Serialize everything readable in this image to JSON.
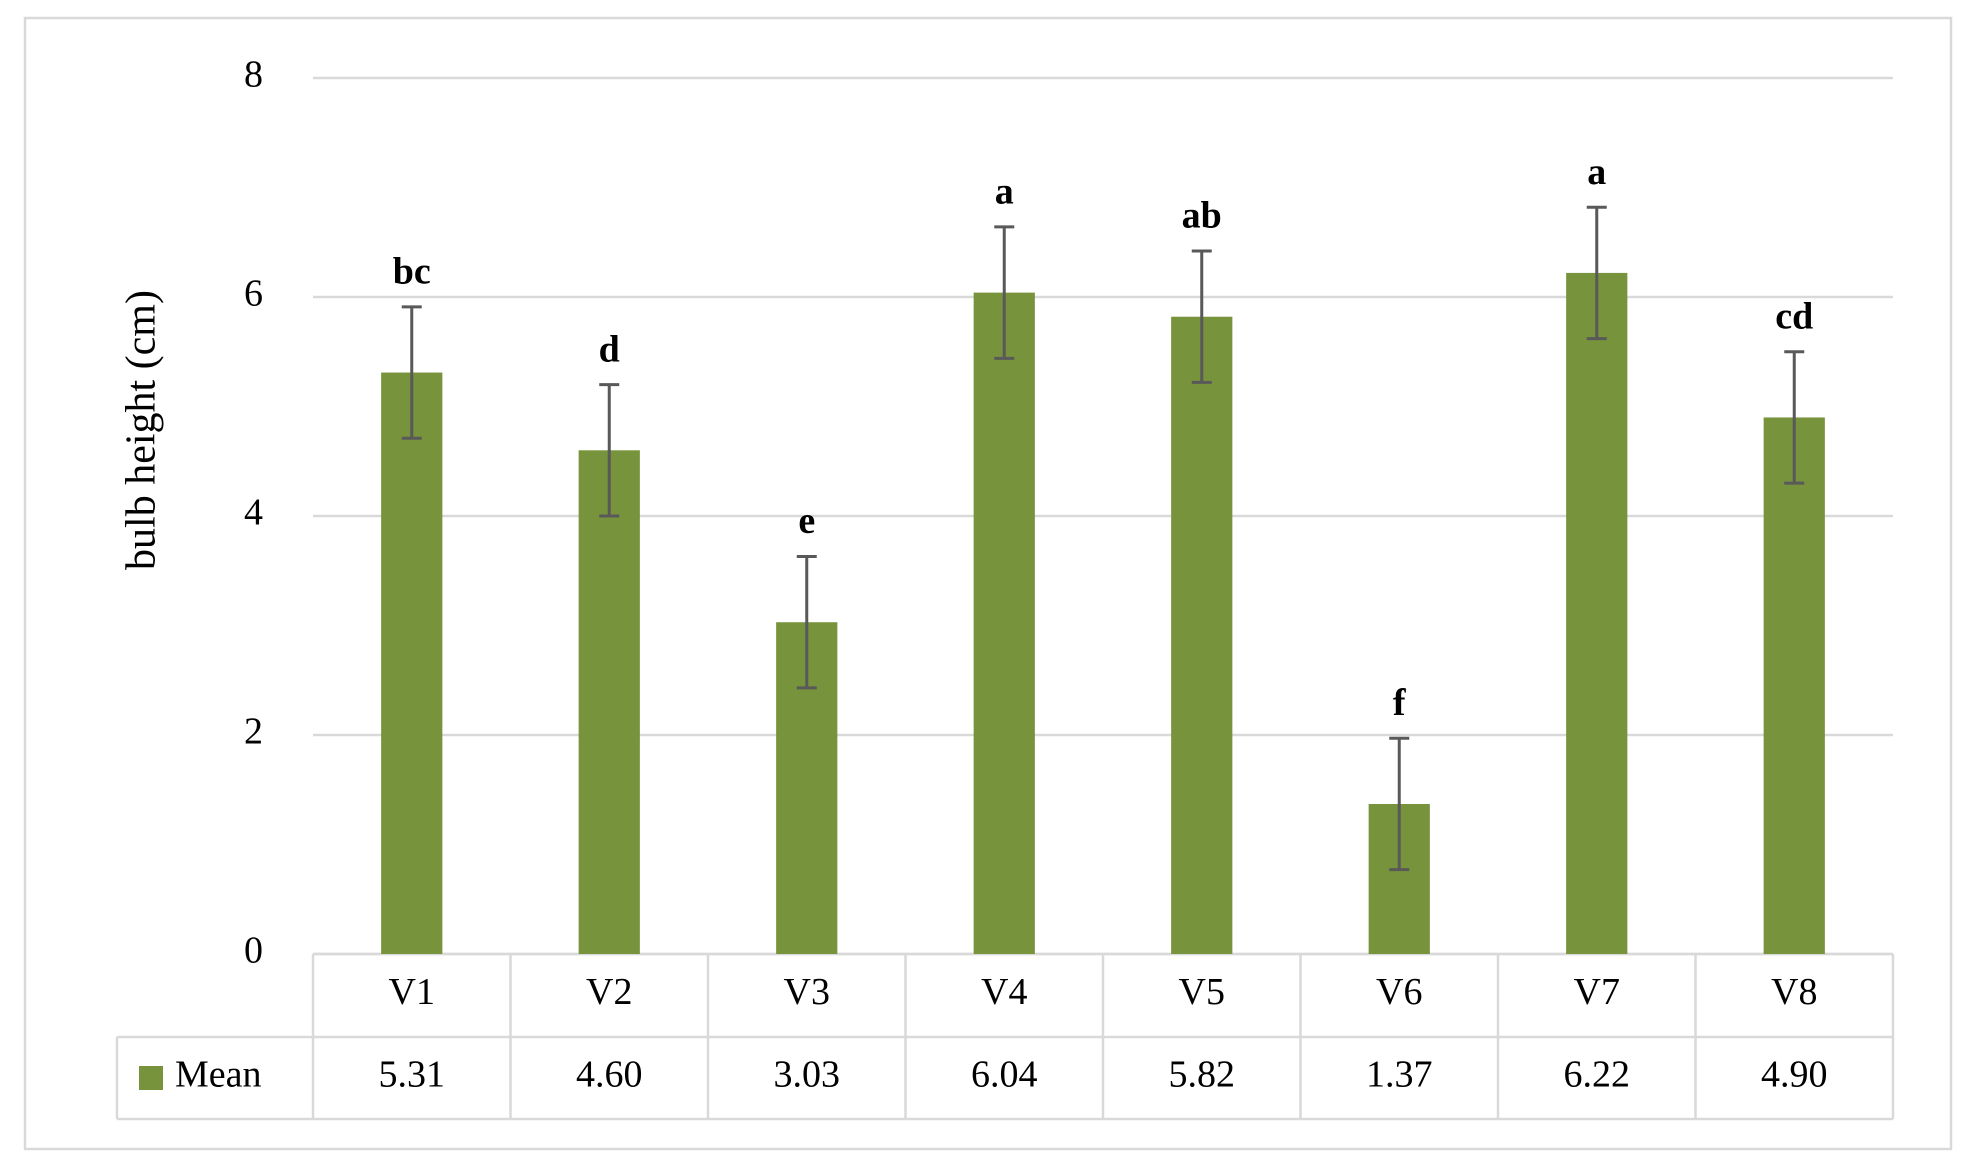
{
  "chart_data": {
    "type": "bar",
    "y_label": "bulb height (cm)",
    "categories": [
      "V1",
      "V2",
      "V3",
      "V4",
      "V5",
      "V6",
      "V7",
      "V8"
    ],
    "series": [
      {
        "name": "Mean",
        "color": "#77933c",
        "values": [
          5.31,
          4.6,
          3.03,
          6.04,
          5.82,
          1.37,
          6.22,
          4.9
        ],
        "value_labels": [
          "5.31",
          "4.60",
          "3.03",
          "6.04",
          "5.82",
          "1.37",
          "6.22",
          "4.90"
        ],
        "errors": [
          0.6,
          0.6,
          0.6,
          0.6,
          0.6,
          0.6,
          0.6,
          0.6
        ],
        "annotations": [
          "bc",
          "d",
          "e",
          "a",
          "ab",
          "f",
          "a",
          "cd"
        ]
      }
    ],
    "error_bar_color": "#595959",
    "ylim": [
      0,
      8
    ],
    "yticks": [
      0,
      2,
      4,
      6,
      8
    ],
    "grid": true,
    "data_table": true
  }
}
